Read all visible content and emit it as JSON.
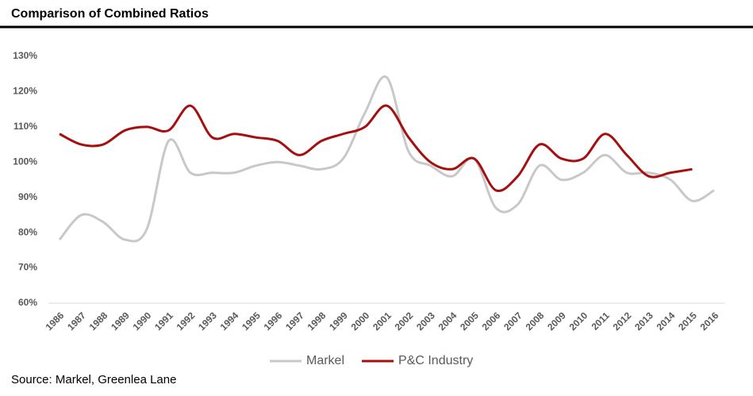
{
  "chart_data": {
    "type": "line",
    "title": "Comparison of Combined Ratios",
    "source": "Source: Markel, Greenlea Lane",
    "categories": [
      "1986",
      "1987",
      "1988",
      "1989",
      "1990",
      "1991",
      "1992",
      "1993",
      "1994",
      "1995",
      "1996",
      "1997",
      "1998",
      "1999",
      "2000",
      "2001",
      "2002",
      "2003",
      "2004",
      "2005",
      "2006",
      "2007",
      "2008",
      "2009",
      "2010",
      "2011",
      "2012",
      "2013",
      "2014",
      "2015",
      "2016"
    ],
    "series": [
      {
        "name": "Markel",
        "color": "#c8c8c8",
        "values": [
          78,
          85,
          83,
          78,
          81,
          106,
          97,
          97,
          97,
          99,
          100,
          99,
          98,
          101,
          114,
          124,
          103,
          99,
          96,
          101,
          87,
          88,
          99,
          95,
          97,
          102,
          97,
          97,
          95,
          89,
          92
        ]
      },
      {
        "name": "P&C Industry",
        "color": "#a50f0f",
        "values": [
          108,
          105,
          105,
          109,
          110,
          109,
          116,
          107,
          108,
          107,
          106,
          102,
          106,
          108,
          110,
          116,
          107,
          100,
          98,
          101,
          92,
          96,
          105,
          101,
          101,
          108,
          102,
          96,
          97,
          98,
          null
        ]
      }
    ],
    "ylim": [
      60,
      130
    ],
    "yticks": [
      {
        "value": 60,
        "label": "60%"
      },
      {
        "value": 70,
        "label": "70%"
      },
      {
        "value": 80,
        "label": "80%"
      },
      {
        "value": 90,
        "label": "90%"
      },
      {
        "value": 100,
        "label": "100%"
      },
      {
        "value": 110,
        "label": "110%"
      },
      {
        "value": 120,
        "label": "120%"
      },
      {
        "value": 130,
        "label": "130%"
      }
    ],
    "smooth": true,
    "legend": "bottom"
  }
}
